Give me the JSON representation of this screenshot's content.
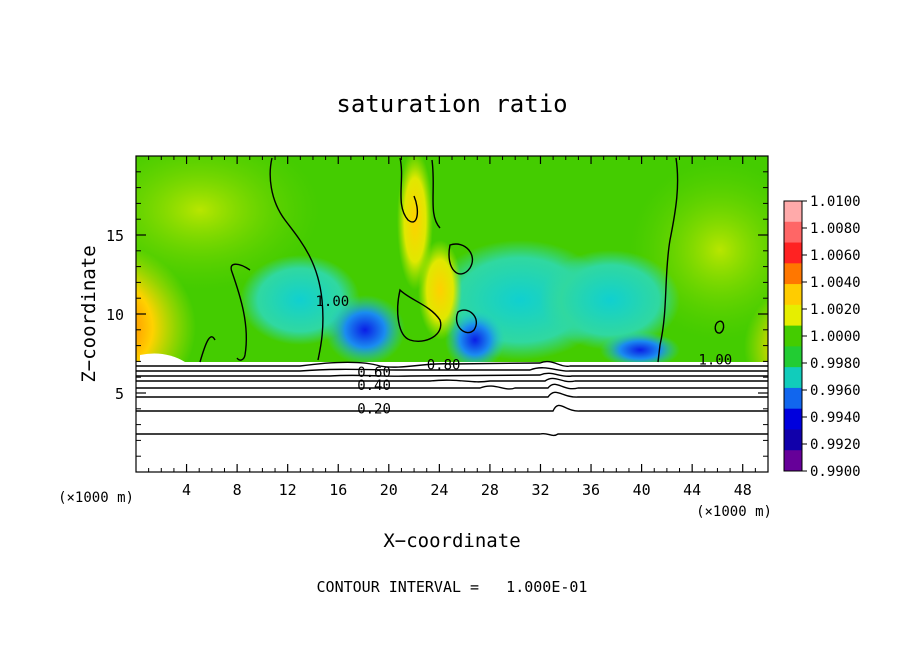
{
  "chart_data": {
    "type": "heatmap",
    "title": "saturation ratio",
    "xlabel": "X−coordinate",
    "ylabel": "Z−coordinate",
    "x_unit_left": "(×1000 m)",
    "x_unit_right": "(×1000 m)",
    "xlim": [
      0,
      50
    ],
    "ylim": [
      0,
      20
    ],
    "x_ticks": [
      4,
      8,
      12,
      16,
      20,
      24,
      28,
      32,
      36,
      40,
      44,
      48
    ],
    "y_ticks": [
      5,
      10,
      15
    ],
    "colorbar": {
      "levels": [
        "1.0100",
        "1.0080",
        "1.0060",
        "1.0040",
        "1.0020",
        "1.0000",
        "0.9980",
        "0.9960",
        "0.9940",
        "0.9920",
        "0.9900"
      ],
      "colors": [
        "#ffaaaa",
        "#ff6666",
        "#ff2222",
        "#ff7700",
        "#ffcc00",
        "#e6ee00",
        "#44cc00",
        "#22cc33",
        "#11ccbb",
        "#1166ee",
        "#0000dd",
        "#1100aa",
        "#660099"
      ]
    },
    "contour_labels": [
      {
        "text": "1.00",
        "x": 14.2,
        "z": 10.5
      },
      {
        "text": "1.00",
        "x": 44.5,
        "z": 6.8
      },
      {
        "text": "0.80",
        "x": 23.0,
        "z": 6.5
      },
      {
        "text": "0.60",
        "x": 17.5,
        "z": 6.0
      },
      {
        "text": "0.40",
        "x": 17.5,
        "z": 5.2
      },
      {
        "text": "0.20",
        "x": 17.5,
        "z": 3.7
      }
    ],
    "contour_interval_note": "CONTOUR INTERVAL =   1.000E-01"
  }
}
